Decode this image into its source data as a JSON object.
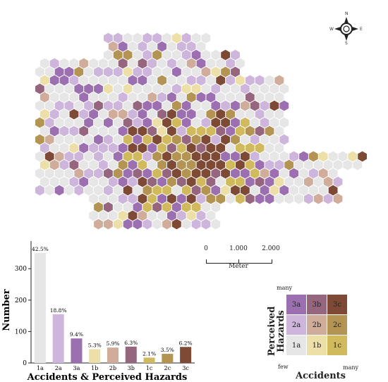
{
  "compass": {
    "n": "N",
    "s": "S",
    "e": "E",
    "w": "W"
  },
  "scalebar": {
    "ticks": [
      "0",
      "1.000",
      "2.000"
    ],
    "unit": "Meter"
  },
  "colors": {
    "1a": "#e6e6e6",
    "2a": "#cdb5db",
    "3a": "#9b6fb0",
    "1b": "#eddfa8",
    "2b": "#d0ad9b",
    "3b": "#96667e",
    "1c": "#d1b95e",
    "2c": "#b39452",
    "3c": "#7e4a35"
  },
  "legend": {
    "grid": [
      [
        "3a",
        "3b",
        "3c"
      ],
      [
        "2a",
        "2b",
        "2c"
      ],
      [
        "1a",
        "1b",
        "1c"
      ]
    ],
    "y_title": "Perceived Hazards",
    "x_title": "Accidents",
    "y_high": "many",
    "low": "few",
    "x_high": "many"
  },
  "chart_data": {
    "type": "bar",
    "categories": [
      "1a",
      "2a",
      "3a",
      "1b",
      "2b",
      "3b",
      "1c",
      "2c",
      "3c"
    ],
    "values": [
      350,
      155,
      78,
      44,
      49,
      52,
      17,
      29,
      51
    ],
    "labels": [
      "42.5%",
      "18.8%",
      "9.4%",
      "5.3%",
      "5.9%",
      "6.3%",
      "2.1%",
      "3.5%",
      "6.2%"
    ],
    "title": "",
    "xlabel": "Accidents & Perceived Hazards",
    "ylabel": "Number",
    "ylim": [
      0,
      370
    ],
    "yticks": [
      0,
      100,
      200,
      300
    ]
  }
}
